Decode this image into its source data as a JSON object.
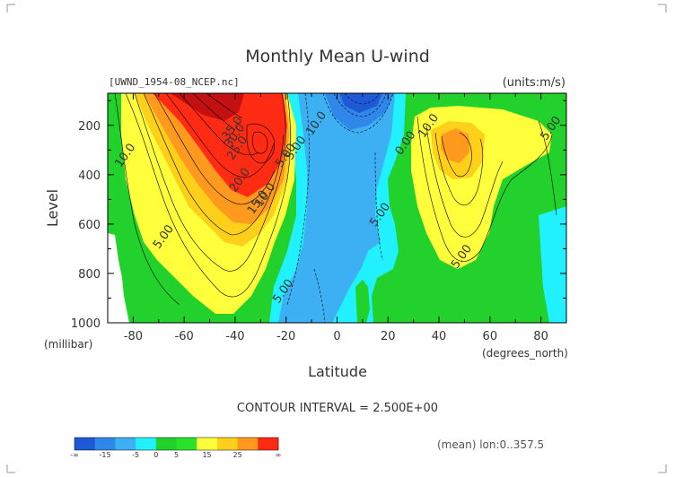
{
  "chart_data": {
    "type": "contour",
    "title": "Monthly Mean U-wind",
    "dataset_label": "[UWND_1954-08_NCEP.nc]",
    "units_label": "(units:m/s)",
    "xlabel": "Latitude",
    "x_units": "(degrees_north)",
    "ylabel": "Level",
    "y_units": "(millibar)",
    "xlim": [
      -90,
      90
    ],
    "ylim": [
      1000,
      70
    ],
    "x_ticks": [
      -80,
      -60,
      -40,
      -20,
      0,
      20,
      40,
      60,
      80
    ],
    "y_ticks": [
      200,
      400,
      600,
      800,
      1000
    ],
    "contour_interval_text": "CONTOUR INTERVAL = 2.500E+00",
    "subtitle_right": "(mean) lon:0..357.5",
    "levels": [
      -15,
      -10,
      -5,
      0,
      5,
      10,
      15,
      20,
      25
    ],
    "colorbar": {
      "colors": [
        "#1e5ad6",
        "#2f87ea",
        "#3cb0f2",
        "#21f0ff",
        "#22d12b",
        "#28e22c",
        "#ffff3b",
        "#ffd01a",
        "#ff9a1f",
        "#ff2b12"
      ],
      "tick_labels": [
        "-∞",
        "-15",
        "-5",
        "0",
        "5",
        "15",
        "25",
        "∞"
      ]
    },
    "contour_labels": [
      {
        "text": "35.0",
        "x": -40,
        "y": 220
      },
      {
        "text": "30.0",
        "x": -39,
        "y": 250
      },
      {
        "text": "25.0",
        "x": -38,
        "y": 300
      },
      {
        "text": "20.0",
        "x": -37,
        "y": 430
      },
      {
        "text": "15.0",
        "x": -30,
        "y": 520
      },
      {
        "text": "10.0",
        "x": -27,
        "y": 490
      },
      {
        "text": "10.0",
        "x": -82,
        "y": 330
      },
      {
        "text": "5.00",
        "x": -67,
        "y": 660
      },
      {
        "text": "5.00",
        "x": -19,
        "y": 330
      },
      {
        "text": "5.00",
        "x": -15,
        "y": 300
      },
      {
        "text": "10.0",
        "x": -7,
        "y": 200
      },
      {
        "text": "5.00",
        "x": -20,
        "y": 880
      },
      {
        "text": "5.00",
        "x": 18,
        "y": 570
      },
      {
        "text": "0.00",
        "x": 28,
        "y": 280
      },
      {
        "text": "10.0",
        "x": 37,
        "y": 210
      },
      {
        "text": "5.00",
        "x": 85,
        "y": 220
      },
      {
        "text": "5.00",
        "x": 50,
        "y": 740
      }
    ]
  }
}
